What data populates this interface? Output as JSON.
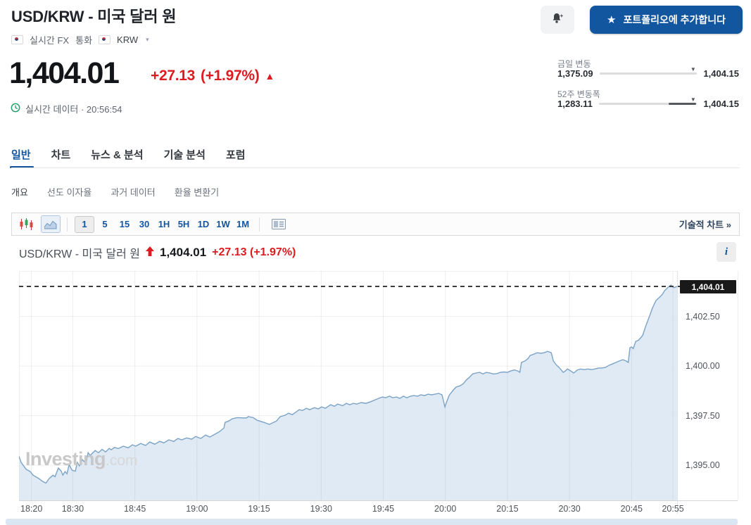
{
  "header": {
    "title": "USD/KRW - 미국 달러 원",
    "crumbs": {
      "market": "실시간 FX",
      "category": "통화",
      "pair": "KRW"
    },
    "portfolio_label": "포트폴리오에 추가합니다"
  },
  "quote": {
    "price": "1,404.01",
    "change": "+27.13",
    "change_pct": "(+1.97%)",
    "direction": "up",
    "status": "실시간 데이터 · 20:56:54"
  },
  "ranges": {
    "daily": {
      "label": "금일 변동",
      "low": "1,375.09",
      "high": "1,404.15",
      "position_pct": 99.5
    },
    "week52": {
      "label": "52주 변동폭",
      "low": "1,283.11",
      "high": "1,404.15",
      "position_pct": 99.5
    }
  },
  "tabs": {
    "items": [
      "일반",
      "차트",
      "뉴스 & 분석",
      "기술 분석",
      "포럼"
    ],
    "active": "일반"
  },
  "subnav": {
    "items": [
      "개요",
      "선도 이자율",
      "과거 데이터",
      "환율 변환기"
    ],
    "active": "개요"
  },
  "toolbar": {
    "chart_type_icons": [
      "candlestick-icon",
      "area-chart-icon"
    ],
    "selected_chart_type": "area",
    "intervals": [
      "1",
      "5",
      "15",
      "30",
      "1H",
      "5H",
      "1D",
      "1W",
      "1M"
    ],
    "active_interval": "1",
    "layout_icon": "news-layout-icon",
    "tech_link": "기술적 차트 »"
  },
  "chart_header": {
    "title": "USD/KRW - 미국 달러 원",
    "price": "1,404.01",
    "change": "+27.13 (+1.97%)"
  },
  "watermark": {
    "bold": "Investing",
    "light": ".com"
  },
  "colors": {
    "accent_blue": "#1256a0",
    "up_red": "#de1b20",
    "line": "#7ba3c6",
    "area_fill": "#dce8f4",
    "badge_bg": "#191919",
    "grid": "#f1ecec"
  },
  "chart_data": {
    "type": "area",
    "title": "USD/KRW - 미국 달러 원 1분 차트",
    "x_unit": "minutes since 18:17",
    "x_max": 159,
    "ylim": [
      1393.23,
      1404.79
    ],
    "grid": true,
    "last_price": 1404.01,
    "badge_label": "1,404.01",
    "y_ticks": [
      {
        "p": 1402.5,
        "label": "1,402.50"
      },
      {
        "p": 1400.0,
        "label": "1,400.00"
      },
      {
        "p": 1397.5,
        "label": "1,397.50"
      },
      {
        "p": 1395.0,
        "label": "1,395.00"
      }
    ],
    "x_ticks": [
      {
        "m": 3,
        "label": "18:20"
      },
      {
        "m": 13,
        "label": "18:30"
      },
      {
        "m": 28,
        "label": "18:45"
      },
      {
        "m": 43,
        "label": "19:00"
      },
      {
        "m": 58,
        "label": "19:15"
      },
      {
        "m": 73,
        "label": "19:30"
      },
      {
        "m": 88,
        "label": "19:45"
      },
      {
        "m": 103,
        "label": "20:00"
      },
      {
        "m": 118,
        "label": "20:15"
      },
      {
        "m": 133,
        "label": "20:30"
      },
      {
        "m": 148,
        "label": "20:45"
      },
      {
        "m": 158,
        "label": "20:55"
      }
    ],
    "points": [
      [
        0,
        1395.45
      ],
      [
        0.5,
        1395.15
      ],
      [
        1.7,
        1394.8
      ],
      [
        2.7,
        1394.68
      ],
      [
        3.4,
        1394.5
      ],
      [
        4.8,
        1394.33
      ],
      [
        5.6,
        1394.2
      ],
      [
        6.5,
        1394.1
      ],
      [
        7.3,
        1394.33
      ],
      [
        8.2,
        1394.5
      ],
      [
        8.7,
        1394.42
      ],
      [
        9.5,
        1394.86
      ],
      [
        10.2,
        1394.7
      ],
      [
        10.6,
        1394.5
      ],
      [
        11.1,
        1394.68
      ],
      [
        11.6,
        1394.57
      ],
      [
        12.1,
        1395.04
      ],
      [
        12.8,
        1394.75
      ],
      [
        13.6,
        1394.7
      ],
      [
        14.1,
        1395.14
      ],
      [
        14.6,
        1394.97
      ],
      [
        15.3,
        1395.28
      ],
      [
        16.2,
        1395.1
      ],
      [
        16.7,
        1395.63
      ],
      [
        17.2,
        1395.5
      ],
      [
        18.4,
        1395.74
      ],
      [
        19.2,
        1395.63
      ],
      [
        20.1,
        1395.8
      ],
      [
        20.9,
        1395.67
      ],
      [
        21.8,
        1395.85
      ],
      [
        22.3,
        1395.78
      ],
      [
        23.1,
        1395.9
      ],
      [
        24,
        1395.84
      ],
      [
        25.2,
        1395.96
      ],
      [
        26.4,
        1395.88
      ],
      [
        27.4,
        1396.03
      ],
      [
        28.2,
        1395.96
      ],
      [
        29.4,
        1396.1
      ],
      [
        30.6,
        1396.0
      ],
      [
        31.6,
        1396.17
      ],
      [
        32.8,
        1396.06
      ],
      [
        34,
        1396.2
      ],
      [
        35,
        1396.13
      ],
      [
        36.2,
        1396.28
      ],
      [
        37.4,
        1396.2
      ],
      [
        38.4,
        1396.35
      ],
      [
        39.3,
        1396.28
      ],
      [
        40.5,
        1396.38
      ],
      [
        41.7,
        1396.31
      ],
      [
        42.7,
        1396.45
      ],
      [
        43.9,
        1396.35
      ],
      [
        45.1,
        1396.52
      ],
      [
        46.1,
        1396.42
      ],
      [
        47.3,
        1396.56
      ],
      [
        48.5,
        1396.7
      ],
      [
        49.5,
        1396.88
      ],
      [
        49.8,
        1397.16
      ],
      [
        50.7,
        1397.23
      ],
      [
        51.5,
        1397.34
      ],
      [
        52.7,
        1397.4
      ],
      [
        54.9,
        1397.38
      ],
      [
        55.4,
        1397.45
      ],
      [
        56.6,
        1397.4
      ],
      [
        57.5,
        1397.27
      ],
      [
        59.2,
        1397.16
      ],
      [
        60.5,
        1397.06
      ],
      [
        62.2,
        1397.23
      ],
      [
        63.1,
        1397.45
      ],
      [
        64.3,
        1397.52
      ],
      [
        65.1,
        1397.62
      ],
      [
        66,
        1397.55
      ],
      [
        66.8,
        1397.66
      ],
      [
        67.7,
        1397.8
      ],
      [
        68.5,
        1397.76
      ],
      [
        69.4,
        1397.87
      ],
      [
        70.2,
        1397.8
      ],
      [
        71.4,
        1397.9
      ],
      [
        72.3,
        1397.84
      ],
      [
        73.1,
        1397.94
      ],
      [
        74,
        1397.87
      ],
      [
        75.3,
        1398.05
      ],
      [
        76.2,
        1397.97
      ],
      [
        77,
        1398.08
      ],
      [
        78.2,
        1398.0
      ],
      [
        79.1,
        1398.12
      ],
      [
        79.9,
        1398.05
      ],
      [
        80.8,
        1398.12
      ],
      [
        81.6,
        1398.08
      ],
      [
        82.7,
        1398.16
      ],
      [
        83.8,
        1398.12
      ],
      [
        85,
        1398.2
      ],
      [
        86.1,
        1398.3
      ],
      [
        86.9,
        1398.37
      ],
      [
        87.8,
        1398.44
      ],
      [
        88.6,
        1398.4
      ],
      [
        89.5,
        1398.48
      ],
      [
        90.3,
        1398.4
      ],
      [
        91.2,
        1398.44
      ],
      [
        92,
        1398.37
      ],
      [
        92.9,
        1398.48
      ],
      [
        93.7,
        1398.4
      ],
      [
        94.6,
        1398.48
      ],
      [
        95.4,
        1398.51
      ],
      [
        96.3,
        1398.48
      ],
      [
        97.1,
        1398.55
      ],
      [
        98,
        1398.51
      ],
      [
        98.8,
        1398.58
      ],
      [
        99.7,
        1398.55
      ],
      [
        100.5,
        1398.58
      ],
      [
        101.4,
        1398.62
      ],
      [
        102.2,
        1398.55
      ],
      [
        102.9,
        1397.94
      ],
      [
        103.4,
        1398.23
      ],
      [
        103.9,
        1398.51
      ],
      [
        104.8,
        1398.76
      ],
      [
        105.6,
        1398.94
      ],
      [
        106.5,
        1399.0
      ],
      [
        107.3,
        1399.1
      ],
      [
        108.1,
        1399.3
      ],
      [
        108.8,
        1399.43
      ],
      [
        109.6,
        1399.6
      ],
      [
        110.4,
        1399.65
      ],
      [
        111.3,
        1399.68
      ],
      [
        112.1,
        1399.6
      ],
      [
        112.9,
        1399.68
      ],
      [
        113.8,
        1399.65
      ],
      [
        114.6,
        1399.6
      ],
      [
        115.5,
        1399.62
      ],
      [
        116.3,
        1399.68
      ],
      [
        117.2,
        1399.7
      ],
      [
        118,
        1399.68
      ],
      [
        118.8,
        1399.75
      ],
      [
        119.7,
        1399.8
      ],
      [
        120.5,
        1399.75
      ],
      [
        121,
        1399.68
      ],
      [
        121.4,
        1400.18
      ],
      [
        122.2,
        1400.25
      ],
      [
        123,
        1400.38
      ],
      [
        123.5,
        1400.53
      ],
      [
        124.4,
        1400.6
      ],
      [
        125.2,
        1400.67
      ],
      [
        126.1,
        1400.64
      ],
      [
        126.9,
        1400.67
      ],
      [
        127.7,
        1400.74
      ],
      [
        128.6,
        1400.67
      ],
      [
        129.1,
        1400.25
      ],
      [
        129.8,
        1400.06
      ],
      [
        130.6,
        1399.9
      ],
      [
        131.5,
        1399.68
      ],
      [
        132,
        1399.75
      ],
      [
        132.5,
        1399.85
      ],
      [
        133.3,
        1399.75
      ],
      [
        134,
        1399.65
      ],
      [
        134.9,
        1399.8
      ],
      [
        135.7,
        1399.85
      ],
      [
        136.6,
        1399.82
      ],
      [
        137.4,
        1399.85
      ],
      [
        138.3,
        1399.82
      ],
      [
        139.1,
        1399.85
      ],
      [
        140,
        1399.9
      ],
      [
        140.8,
        1399.9
      ],
      [
        141.7,
        1399.93
      ],
      [
        142.5,
        1400.03
      ],
      [
        143.3,
        1400.1
      ],
      [
        144.2,
        1400.18
      ],
      [
        145,
        1400.25
      ],
      [
        145.9,
        1400.32
      ],
      [
        146.7,
        1400.25
      ],
      [
        147.2,
        1400.18
      ],
      [
        147.6,
        1400.92
      ],
      [
        148,
        1400.96
      ],
      [
        148.4,
        1400.88
      ],
      [
        149,
        1401.24
      ],
      [
        149.7,
        1401.3
      ],
      [
        150.2,
        1401.42
      ],
      [
        150.7,
        1401.55
      ],
      [
        151.4,
        1402.0
      ],
      [
        152.4,
        1402.55
      ],
      [
        153,
        1402.9
      ],
      [
        153.9,
        1403.3
      ],
      [
        154.7,
        1403.45
      ],
      [
        155.4,
        1403.6
      ],
      [
        156,
        1403.8
      ],
      [
        157,
        1404.0
      ],
      [
        157.5,
        1404.08
      ],
      [
        158.2,
        1403.95
      ],
      [
        159,
        1404.01
      ]
    ]
  }
}
